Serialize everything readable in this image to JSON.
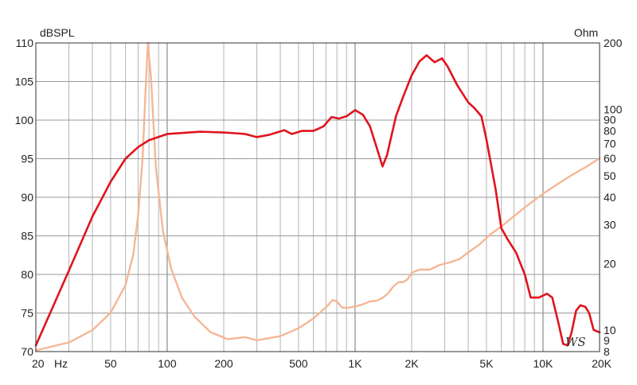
{
  "chart_data": {
    "type": "line",
    "x_scale": "log",
    "x_range": [
      20,
      20000
    ],
    "y_left": {
      "label": "dBSPL",
      "range": [
        70,
        110
      ],
      "ticks": [
        70,
        75,
        80,
        85,
        90,
        95,
        100,
        105,
        110
      ]
    },
    "y_right": {
      "label": "Ohm",
      "scale": "log",
      "range": [
        8,
        200
      ],
      "ticks": [
        8,
        9,
        10,
        20,
        30,
        40,
        50,
        60,
        70,
        80,
        90,
        100,
        200
      ]
    },
    "x_ticks": [
      {
        "value": 20,
        "label": "20"
      },
      {
        "value": 50,
        "label": "50"
      },
      {
        "value": 100,
        "label": "100"
      },
      {
        "value": 200,
        "label": "200"
      },
      {
        "value": 500,
        "label": "500"
      },
      {
        "value": 1000,
        "label": "1K"
      },
      {
        "value": 2000,
        "label": "2K"
      },
      {
        "value": 5000,
        "label": "5K"
      },
      {
        "value": 10000,
        "label": "10K"
      },
      {
        "value": 20000,
        "label": "20K"
      }
    ],
    "x_unit": "Hz",
    "grid": true,
    "logo": "WS",
    "series": [
      {
        "axis": "left",
        "color": "#e0141e",
        "points": [
          [
            20,
            70.8
          ],
          [
            30,
            80.5
          ],
          [
            40,
            87.5
          ],
          [
            50,
            92
          ],
          [
            60,
            95
          ],
          [
            70,
            96.5
          ],
          [
            80,
            97.4
          ],
          [
            100,
            98.2
          ],
          [
            150,
            98.5
          ],
          [
            200,
            98.4
          ],
          [
            230,
            98.3
          ],
          [
            260,
            98.2
          ],
          [
            300,
            97.8
          ],
          [
            350,
            98.1
          ],
          [
            420,
            98.7
          ],
          [
            460,
            98.2
          ],
          [
            520,
            98.6
          ],
          [
            600,
            98.6
          ],
          [
            680,
            99.2
          ],
          [
            750,
            100.4
          ],
          [
            820,
            100.2
          ],
          [
            900,
            100.5
          ],
          [
            1000,
            101.3
          ],
          [
            1100,
            100.7
          ],
          [
            1200,
            99.2
          ],
          [
            1320,
            96
          ],
          [
            1400,
            94
          ],
          [
            1480,
            95.5
          ],
          [
            1650,
            100.5
          ],
          [
            1800,
            103
          ],
          [
            2000,
            105.8
          ],
          [
            2200,
            107.6
          ],
          [
            2400,
            108.4
          ],
          [
            2650,
            107.5
          ],
          [
            2900,
            108
          ],
          [
            3100,
            107
          ],
          [
            3500,
            104.5
          ],
          [
            4000,
            102.3
          ],
          [
            4300,
            101.6
          ],
          [
            4700,
            100.5
          ],
          [
            5000,
            97.5
          ],
          [
            5600,
            91
          ],
          [
            6000,
            86
          ],
          [
            6500,
            84.5
          ],
          [
            7200,
            82.8
          ],
          [
            8000,
            80
          ],
          [
            8600,
            77
          ],
          [
            9500,
            77
          ],
          [
            10500,
            77.5
          ],
          [
            11200,
            77
          ],
          [
            12000,
            74
          ],
          [
            12800,
            71
          ],
          [
            13500,
            70.8
          ],
          [
            14200,
            72.5
          ],
          [
            15000,
            75.3
          ],
          [
            15800,
            76
          ],
          [
            16800,
            75.8
          ],
          [
            17600,
            75
          ],
          [
            18600,
            72.8
          ],
          [
            20000,
            72.5
          ]
        ]
      },
      {
        "axis": "right",
        "color": "#f4b796",
        "points": [
          [
            20,
            8.1
          ],
          [
            30,
            8.8
          ],
          [
            40,
            10
          ],
          [
            50,
            12
          ],
          [
            60,
            16
          ],
          [
            66,
            22
          ],
          [
            70,
            33
          ],
          [
            74,
            60
          ],
          [
            77,
            130
          ],
          [
            79,
            200
          ],
          [
            82,
            140
          ],
          [
            87,
            55
          ],
          [
            95,
            28
          ],
          [
            105,
            19
          ],
          [
            120,
            14
          ],
          [
            140,
            11.5
          ],
          [
            170,
            9.8
          ],
          [
            210,
            9.1
          ],
          [
            260,
            9.3
          ],
          [
            300,
            9
          ],
          [
            400,
            9.4
          ],
          [
            500,
            10.2
          ],
          [
            600,
            11.3
          ],
          [
            700,
            12.7
          ],
          [
            760,
            13.7
          ],
          [
            800,
            13.5
          ],
          [
            850,
            12.7
          ],
          [
            900,
            12.6
          ],
          [
            1000,
            12.8
          ],
          [
            1100,
            13.1
          ],
          [
            1200,
            13.5
          ],
          [
            1300,
            13.6
          ],
          [
            1400,
            14
          ],
          [
            1500,
            14.7
          ],
          [
            1600,
            15.8
          ],
          [
            1700,
            16.5
          ],
          [
            1800,
            16.5
          ],
          [
            1900,
            17
          ],
          [
            2000,
            18.2
          ],
          [
            2200,
            18.8
          ],
          [
            2500,
            18.8
          ],
          [
            2800,
            19.7
          ],
          [
            3200,
            20.3
          ],
          [
            3600,
            21
          ],
          [
            4000,
            22.5
          ],
          [
            4600,
            24.5
          ],
          [
            5200,
            27
          ],
          [
            6000,
            29.5
          ],
          [
            7000,
            32.8
          ],
          [
            8000,
            36
          ],
          [
            10000,
            41.5
          ],
          [
            12000,
            46
          ],
          [
            14000,
            50
          ],
          [
            17000,
            55
          ],
          [
            20000,
            60
          ]
        ]
      }
    ]
  }
}
